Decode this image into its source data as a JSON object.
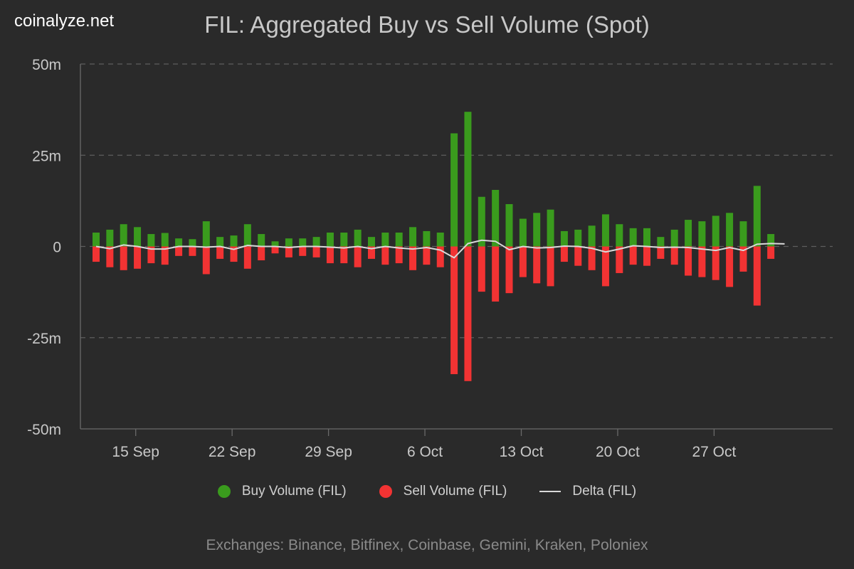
{
  "brand": "coinalyze.net",
  "footer": "Exchanges: Binance, Bitfinex, Coinbase, Gemini, Kraken, Poloniex",
  "colors": {
    "background": "#2a2a2a",
    "buy": "#3a9b1d",
    "sell": "#f23333",
    "delta": "#d9d9d9",
    "grid": "#5e5e5e",
    "axis_text": "#c8c8c8"
  },
  "chart_data": {
    "type": "bar",
    "title": "FIL: Aggregated Buy vs Sell Volume (Spot)",
    "xlabel": "",
    "ylabel": "",
    "ylim": [
      -50000000,
      50000000
    ],
    "y_ticks": [
      {
        "value": 50000000,
        "label": "50m"
      },
      {
        "value": 25000000,
        "label": "25m"
      },
      {
        "value": 0,
        "label": "0"
      },
      {
        "value": -25000000,
        "label": "-25m"
      },
      {
        "value": -50000000,
        "label": "-50m"
      }
    ],
    "x": [
      "2023-09-13",
      "2023-09-14",
      "2023-09-15",
      "2023-09-16",
      "2023-09-17",
      "2023-09-18",
      "2023-09-19",
      "2023-09-20",
      "2023-09-21",
      "2023-09-22",
      "2023-09-23",
      "2023-09-24",
      "2023-09-25",
      "2023-09-26",
      "2023-09-27",
      "2023-09-28",
      "2023-09-29",
      "2023-09-30",
      "2023-10-01",
      "2023-10-02",
      "2023-10-03",
      "2023-10-04",
      "2023-10-05",
      "2023-10-06",
      "2023-10-07",
      "2023-10-08",
      "2023-10-09",
      "2023-10-10",
      "2023-10-11",
      "2023-10-12",
      "2023-10-13",
      "2023-10-14",
      "2023-10-15",
      "2023-10-16",
      "2023-10-17",
      "2023-10-18",
      "2023-10-19",
      "2023-10-20",
      "2023-10-21",
      "2023-10-22",
      "2023-10-23",
      "2023-10-24",
      "2023-10-25",
      "2023-10-26",
      "2023-10-27",
      "2023-10-28",
      "2023-10-29",
      "2023-10-30",
      "2023-10-31",
      "2023-11-01",
      "2023-11-02"
    ],
    "x_ticks": [
      {
        "date": "2023-09-15",
        "label": "15 Sep"
      },
      {
        "date": "2023-09-22",
        "label": "22 Sep"
      },
      {
        "date": "2023-09-29",
        "label": "29 Sep"
      },
      {
        "date": "2023-10-06",
        "label": "6 Oct"
      },
      {
        "date": "2023-10-13",
        "label": "13 Oct"
      },
      {
        "date": "2023-10-20",
        "label": "20 Oct"
      },
      {
        "date": "2023-10-27",
        "label": "27 Oct"
      }
    ],
    "series": [
      {
        "name": "Buy Volume (FIL)",
        "type": "bar",
        "values": [
          3.8,
          4.6,
          6.1,
          5.3,
          3.4,
          3.7,
          2.2,
          2.0,
          6.9,
          2.6,
          3.0,
          6.1,
          3.4,
          1.4,
          2.2,
          2.2,
          2.6,
          3.8,
          3.8,
          4.6,
          2.6,
          3.8,
          3.8,
          5.3,
          4.2,
          3.8,
          31.0,
          36.9,
          13.6,
          15.5,
          11.6,
          7.6,
          9.2,
          10.1,
          4.2,
          4.6,
          5.7,
          8.8,
          6.1,
          5.0,
          5.0,
          2.6,
          4.6,
          7.3,
          6.9,
          8.4,
          9.2,
          6.9,
          16.6,
          3.4,
          0
        ],
        "unit": "m"
      },
      {
        "name": "Sell Volume (FIL)",
        "type": "bar",
        "values": [
          -4.2,
          -5.7,
          -6.5,
          -6.1,
          -4.6,
          -5.0,
          -2.6,
          -2.6,
          -7.6,
          -3.4,
          -4.2,
          -6.1,
          -3.8,
          -1.9,
          -3.0,
          -2.6,
          -3.0,
          -4.6,
          -4.6,
          -5.7,
          -3.4,
          -5.0,
          -4.6,
          -6.5,
          -5.0,
          -5.7,
          -35.0,
          -36.9,
          -12.4,
          -15.1,
          -12.8,
          -8.4,
          -10.1,
          -10.9,
          -4.2,
          -5.3,
          -6.5,
          -10.9,
          -7.3,
          -5.0,
          -5.3,
          -3.4,
          -5.0,
          -8.0,
          -8.4,
          -9.2,
          -11.1,
          -6.9,
          -16.2,
          -3.4,
          0
        ],
        "unit": "m"
      },
      {
        "name": "Delta (FIL)",
        "type": "line",
        "values": [
          0,
          -0.6,
          0.4,
          0,
          -0.7,
          -0.7,
          0,
          0,
          -0.2,
          0,
          -0.8,
          0.3,
          0,
          0,
          -0.3,
          0,
          0,
          -0.2,
          -0.4,
          0,
          -0.6,
          0,
          -0.4,
          -0.7,
          -0.3,
          -1.0,
          -3.1,
          0.8,
          1.7,
          1.4,
          -0.9,
          0,
          -0.4,
          -0.3,
          0.1,
          0,
          -0.5,
          -1.5,
          -0.7,
          0.2,
          0,
          -0.3,
          -0.2,
          -0.3,
          -0.7,
          -1.1,
          -0.3,
          -1.1,
          0.6,
          0.8,
          0.7
        ],
        "unit": "m"
      }
    ],
    "grid": true,
    "legend_placement": "bottom-center"
  }
}
